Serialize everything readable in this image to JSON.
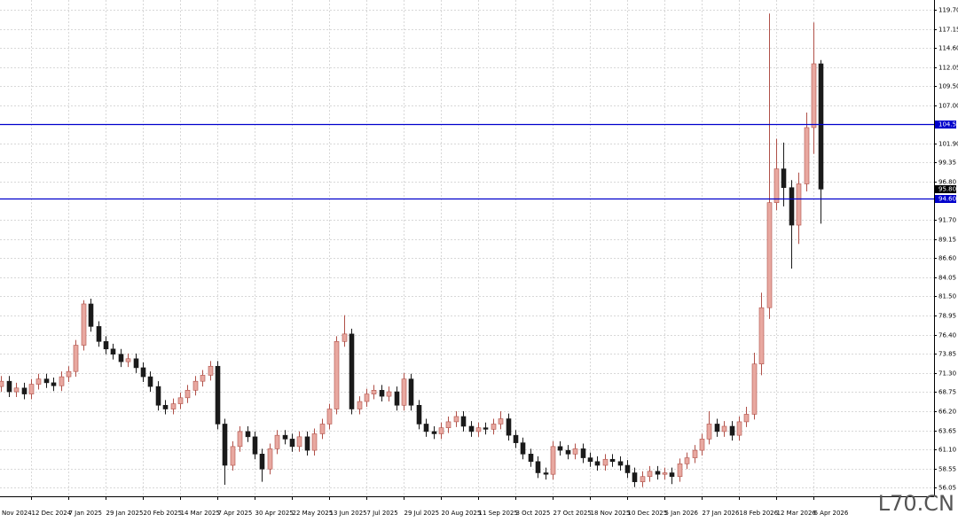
{
  "chart_data": {
    "type": "candlestick",
    "categories": [
      "Nov 2024",
      null,
      null,
      null,
      null,
      "12 Dec 2024",
      null,
      null,
      null,
      null,
      "7 Jan 2025",
      null,
      null,
      null,
      null,
      "29 Jan 2025",
      null,
      null,
      null,
      null,
      "20 Feb 2025",
      null,
      null,
      null,
      null,
      "14 Mar 2025",
      null,
      null,
      null,
      null,
      "7 Apr 2025",
      null,
      null,
      null,
      null,
      "30 Apr 2025",
      null,
      null,
      null,
      null,
      "22 May 2025",
      null,
      null,
      null,
      null,
      "13 Jun 2025",
      null,
      null,
      null,
      null,
      "7 Jul 2025",
      null,
      null,
      null,
      null,
      "29 Jul 2025",
      null,
      null,
      null,
      null,
      "20 Aug 2025",
      null,
      null,
      null,
      null,
      "11 Sep 2025",
      null,
      null,
      null,
      null,
      "3 Oct 2025",
      null,
      null,
      null,
      null,
      "27 Oct 2025",
      null,
      null,
      null,
      null,
      "18 Nov 2025",
      null,
      null,
      null,
      null,
      "10 Dec 2025",
      null,
      null,
      null,
      null,
      "5 Jan 2026",
      null,
      null,
      null,
      null,
      "27 Jan 2026",
      null,
      null,
      null,
      null,
      "18 Feb 2026",
      null,
      null,
      null,
      null,
      "12 Mar 2026",
      null,
      null,
      null,
      null,
      "6 Apr 2026",
      null
    ],
    "open": [
      69.0,
      69.5,
      70.2,
      68.8,
      69.3,
      68.5,
      69.8,
      70.5,
      70.0,
      69.6,
      70.8,
      71.5,
      75.0,
      80.5,
      77.5,
      75.5,
      74.5,
      73.8,
      72.8,
      73.2,
      72.0,
      70.8,
      69.5,
      67.0,
      66.5,
      67.2,
      68.0,
      69.0,
      70.2,
      71.0,
      72.2,
      64.5,
      59.0,
      61.5,
      63.5,
      62.8,
      60.5,
      58.5,
      61.2,
      63.0,
      62.5,
      61.5,
      62.8,
      61.0,
      63.2,
      64.5,
      66.5,
      75.5,
      76.5,
      66.5,
      67.5,
      68.5,
      69.0,
      68.2,
      68.8,
      67.0,
      70.5,
      67.0,
      64.5,
      63.5,
      63.2,
      64.0,
      64.8,
      65.5,
      64.2,
      63.5,
      64.0,
      63.8,
      64.5,
      65.2,
      63.0,
      62.0,
      60.5,
      59.5,
      58.0,
      57.8,
      61.5,
      61.0,
      60.5,
      61.2,
      60.0,
      59.5,
      59.0,
      59.8,
      59.5,
      59.0,
      58.0,
      56.8,
      57.5,
      58.2,
      57.8,
      58.0,
      57.5,
      59.2,
      60.0,
      61.0,
      62.5,
      64.5,
      63.5,
      64.2,
      63.0,
      64.8,
      65.8,
      72.5,
      80.0,
      94.0,
      98.5,
      96.0,
      91.0,
      96.5,
      104.0,
      112.5
    ],
    "high": [
      70.2,
      70.9,
      70.9,
      70.0,
      70.0,
      70.5,
      71.2,
      71.2,
      70.7,
      71.5,
      72.2,
      75.7,
      81.0,
      81.2,
      78.2,
      76.2,
      75.2,
      74.5,
      73.9,
      73.9,
      72.7,
      71.5,
      70.2,
      67.7,
      67.9,
      68.7,
      69.7,
      70.9,
      71.7,
      72.9,
      72.9,
      65.2,
      62.2,
      64.2,
      64.2,
      63.5,
      61.2,
      61.9,
      63.7,
      63.7,
      63.2,
      63.5,
      63.5,
      63.9,
      65.2,
      67.2,
      76.2,
      79.0,
      77.2,
      68.2,
      69.2,
      69.7,
      69.7,
      69.5,
      69.5,
      71.3,
      71.2,
      67.7,
      65.2,
      64.2,
      64.7,
      65.5,
      66.2,
      66.2,
      64.9,
      64.7,
      64.7,
      65.2,
      66.2,
      65.9,
      63.7,
      62.7,
      61.2,
      60.2,
      58.7,
      62.2,
      62.2,
      61.7,
      61.9,
      61.9,
      60.7,
      60.2,
      60.5,
      60.5,
      60.2,
      59.7,
      58.7,
      58.2,
      58.9,
      58.9,
      58.7,
      58.7,
      59.9,
      60.7,
      61.7,
      63.2,
      66.2,
      65.2,
      64.9,
      64.9,
      65.5,
      66.8,
      74.0,
      82.0,
      119.2,
      102.5,
      102.0,
      97.0,
      98.0,
      106.0,
      118.0,
      113.0
    ],
    "low": [
      68.3,
      68.8,
      68.1,
      68.1,
      67.8,
      67.8,
      69.1,
      69.3,
      68.9,
      68.9,
      70.1,
      70.8,
      74.3,
      76.8,
      74.8,
      73.8,
      73.1,
      72.1,
      72.1,
      71.3,
      70.1,
      68.8,
      66.3,
      65.8,
      65.8,
      66.5,
      67.3,
      68.3,
      69.5,
      70.3,
      63.8,
      56.4,
      58.3,
      60.8,
      62.1,
      59.8,
      56.8,
      57.8,
      60.5,
      61.8,
      60.8,
      60.8,
      60.3,
      60.3,
      62.5,
      63.8,
      65.8,
      74.8,
      65.8,
      65.8,
      66.8,
      67.8,
      67.5,
      67.5,
      66.3,
      66.3,
      66.3,
      63.8,
      62.8,
      62.5,
      62.5,
      63.3,
      64.1,
      63.5,
      62.8,
      62.8,
      63.1,
      63.1,
      63.8,
      62.3,
      61.3,
      59.8,
      58.8,
      57.3,
      57.1,
      57.1,
      60.3,
      59.8,
      59.8,
      59.3,
      58.8,
      58.3,
      58.3,
      58.8,
      58.3,
      57.3,
      56.1,
      56.1,
      56.8,
      57.1,
      57.1,
      56.5,
      56.8,
      58.5,
      59.3,
      60.3,
      61.8,
      62.8,
      62.8,
      62.3,
      62.3,
      64.1,
      65.1,
      71.0,
      78.5,
      93.0,
      93.5,
      85.2,
      88.5,
      95.5,
      100.5,
      91.2
    ],
    "close": [
      69.5,
      70.2,
      68.8,
      69.3,
      68.5,
      69.8,
      70.5,
      70.0,
      69.6,
      70.8,
      71.5,
      75.0,
      80.5,
      77.5,
      75.5,
      74.5,
      73.8,
      72.8,
      73.2,
      72.0,
      70.8,
      69.5,
      67.0,
      66.5,
      67.2,
      68.0,
      69.0,
      70.2,
      71.0,
      72.2,
      64.5,
      59.0,
      61.5,
      63.5,
      62.8,
      60.5,
      58.5,
      61.2,
      63.0,
      62.5,
      61.5,
      62.8,
      61.0,
      63.2,
      64.5,
      66.5,
      75.5,
      76.5,
      66.5,
      67.5,
      68.5,
      69.0,
      68.2,
      68.8,
      67.0,
      70.5,
      67.0,
      64.5,
      63.5,
      63.2,
      64.0,
      64.8,
      65.5,
      64.2,
      63.5,
      64.0,
      63.8,
      64.5,
      65.2,
      63.0,
      62.0,
      60.5,
      59.5,
      58.0,
      57.8,
      61.5,
      61.0,
      60.5,
      61.2,
      60.0,
      59.5,
      59.0,
      59.8,
      59.5,
      59.0,
      58.0,
      56.8,
      57.5,
      58.2,
      57.8,
      58.0,
      57.5,
      59.2,
      60.0,
      61.0,
      62.5,
      64.5,
      63.5,
      64.2,
      63.0,
      64.8,
      65.8,
      72.5,
      80.0,
      94.0,
      98.5,
      96.0,
      91.0,
      96.5,
      104.0,
      112.5,
      95.8
    ],
    "up_color": "#e8a8a0",
    "up_edge": "#b05048",
    "down_color": "#1a1a1a",
    "ylim": [
      54.87,
      121.0
    ],
    "yticks": [
      {
        "value": 119.7,
        "label": "119.70"
      },
      117.15,
      {
        "value": 114.6,
        "label": "114.60"
      },
      112.05,
      {
        "value": 109.5,
        "label": "109.50"
      },
      {
        "value": 107,
        "label": "107.00"
      },
      {
        "value": 101.9,
        "label": "101.90"
      },
      99.35,
      {
        "value": 96.8,
        "label": "96.80"
      },
      {
        "value": 91.7,
        "label": "91.70"
      },
      89.15,
      {
        "value": 86.6,
        "label": "86.60"
      },
      84.05,
      {
        "value": 81.5,
        "label": "81.50"
      },
      78.95,
      {
        "value": 76.4,
        "label": "76.40"
      },
      73.85,
      {
        "value": 71.3,
        "label": "71.30"
      },
      68.75,
      {
        "value": 66.2,
        "label": "66.20"
      },
      63.65,
      {
        "value": 61.1,
        "label": "61.10"
      },
      58.55,
      56.05
    ],
    "grid": true,
    "hlines": [
      {
        "value": 104.5,
        "label": "104.50"
      },
      {
        "value": 94.6,
        "label": "94.60"
      }
    ],
    "hline_color": "#0000cc",
    "current_price": {
      "value": 95.8,
      "label": "95.80"
    },
    "watermark": "L70.CN"
  }
}
